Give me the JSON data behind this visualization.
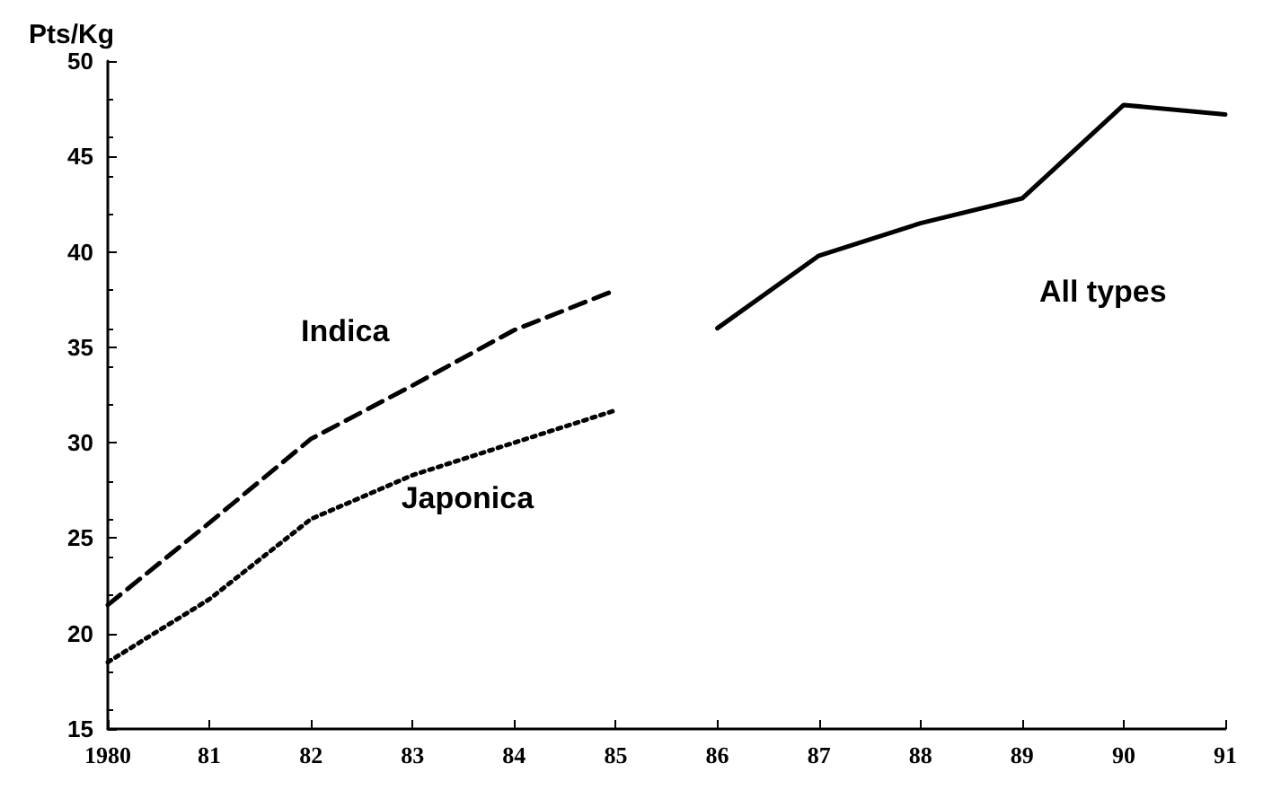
{
  "chart_data": {
    "type": "line",
    "ylabel": "Pts/Kg",
    "categories": [
      "1980",
      "81",
      "82",
      "83",
      "84",
      "85",
      "86",
      "87",
      "88",
      "89",
      "90",
      "91"
    ],
    "series": [
      {
        "name": "Indica",
        "color": "#000000",
        "line_style": "dashed",
        "values": [
          21.5,
          25.8,
          30.2,
          33.0,
          35.9,
          38.0,
          null,
          null,
          null,
          null,
          null,
          null
        ]
      },
      {
        "name": "Japonica",
        "color": "#000000",
        "line_style": "dotted",
        "values": [
          18.5,
          21.8,
          26.0,
          28.3,
          30.0,
          31.7,
          null,
          null,
          null,
          null,
          null,
          null
        ]
      },
      {
        "name": "All types",
        "color": "#000000",
        "line_style": "solid",
        "values": [
          null,
          null,
          null,
          null,
          null,
          null,
          36.0,
          39.8,
          41.5,
          42.8,
          47.7,
          47.2
        ]
      }
    ],
    "ylim": [
      15,
      50
    ],
    "yticks": [
      15,
      20,
      25,
      30,
      35,
      40,
      45,
      50
    ],
    "grid": false,
    "marker": "none"
  }
}
